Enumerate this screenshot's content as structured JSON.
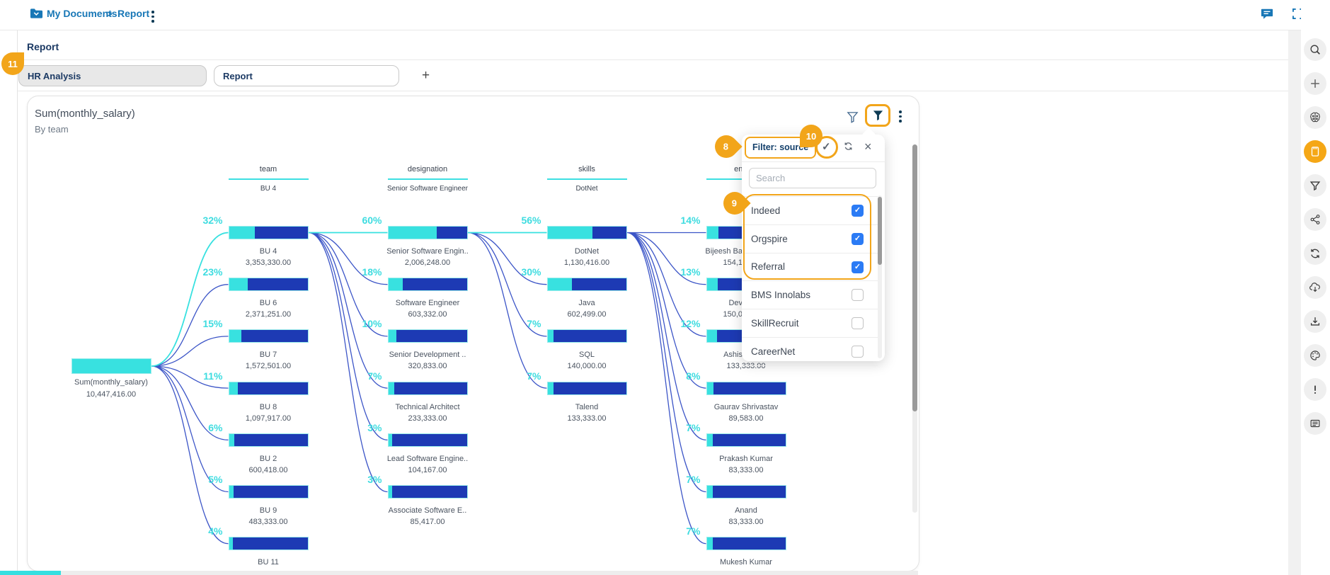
{
  "breadcrumb": {
    "folder_icon": "folder-icon",
    "items": [
      "My Documents",
      "Report"
    ],
    "separator": ">"
  },
  "topbar": {
    "comment_icon": "comment-icon",
    "fullscreen_icon": "fullscreen-icon"
  },
  "page": {
    "title": "Report"
  },
  "tabs": [
    {
      "label": "HR Analysis",
      "active": true
    },
    {
      "label": "Report",
      "active": false
    }
  ],
  "add_tab_label": "+",
  "chart": {
    "title": "Sum(monthly_salary)",
    "subtitle": "By team"
  },
  "annotations": {
    "badge8": "8",
    "badge9": "9",
    "badge10": "10",
    "badge11": "11"
  },
  "filter_popup": {
    "title": "Filter: source",
    "apply_icon": "✓",
    "close_icon": "×",
    "search_placeholder": "Search",
    "options": [
      {
        "label": "Indeed",
        "checked": true
      },
      {
        "label": "Orgspire",
        "checked": true
      },
      {
        "label": "Referral",
        "checked": true
      },
      {
        "label": "BMS Innolabs",
        "checked": false
      },
      {
        "label": "SkillRecruit",
        "checked": false
      },
      {
        "label": "CareerNet",
        "checked": false
      }
    ]
  },
  "chart_data": {
    "type": "decomposition-tree",
    "root": {
      "label": "Sum(monthly_salary)",
      "value": "10,447,416.00"
    },
    "columns": [
      {
        "header": "team",
        "selected": "BU 4",
        "nodes": [
          {
            "label": "BU 4",
            "value": "3,353,330.00",
            "pct": 32,
            "selected": true
          },
          {
            "label": "BU 6",
            "value": "2,371,251.00",
            "pct": 23
          },
          {
            "label": "BU 7",
            "value": "1,572,501.00",
            "pct": 15
          },
          {
            "label": "BU 8",
            "value": "1,097,917.00",
            "pct": 11
          },
          {
            "label": "BU 2",
            "value": "600,418.00",
            "pct": 6
          },
          {
            "label": "BU 9",
            "value": "483,333.00",
            "pct": 5
          },
          {
            "label": "BU 11",
            "value": "",
            "pct": 4
          }
        ]
      },
      {
        "header": "designation",
        "selected": "Senior Software Engineer",
        "nodes": [
          {
            "label": "Senior Software Engin..",
            "value": "2,006,248.00",
            "pct": 60,
            "selected": true
          },
          {
            "label": "Software Engineer",
            "value": "603,332.00",
            "pct": 18
          },
          {
            "label": "Senior Development ..",
            "value": "320,833.00",
            "pct": 10
          },
          {
            "label": "Technical Architect",
            "value": "233,333.00",
            "pct": 7
          },
          {
            "label": "Lead Software Engine..",
            "value": "104,167.00",
            "pct": 3
          },
          {
            "label": "Associate Software E..",
            "value": "85,417.00",
            "pct": 3
          }
        ]
      },
      {
        "header": "skills",
        "selected": "DotNet",
        "nodes": [
          {
            "label": "DotNet",
            "value": "1,130,416.00",
            "pct": 56,
            "selected": true
          },
          {
            "label": "Java",
            "value": "602,499.00",
            "pct": 30
          },
          {
            "label": "SQL",
            "value": "140,000.00",
            "pct": 7
          },
          {
            "label": "Talend",
            "value": "133,333.00",
            "pct": 7
          }
        ]
      },
      {
        "header": "ename",
        "selected": "",
        "nodes": [
          {
            "label": "Bijeesh Ba",
            "value": "154,1",
            "pct": 14,
            "cut_label": true,
            "cut_value": true
          },
          {
            "label": "Dev",
            "value": "150,0",
            "pct": 13,
            "cut_label": true,
            "cut_value": true
          },
          {
            "label": "Ashis",
            "value": "133,333.00",
            "pct": 12,
            "cut_label": true
          },
          {
            "label": "Gaurav Shrivastav",
            "value": "89,583.00",
            "pct": 8
          },
          {
            "label": "Prakash Kumar",
            "value": "83,333.00",
            "pct": 7
          },
          {
            "label": "Anand",
            "value": "83,333.00",
            "pct": 7
          },
          {
            "label": "Mukesh Kumar",
            "value": "",
            "pct": 7
          }
        ]
      }
    ]
  },
  "sidebar": {
    "icons": [
      {
        "name": "search-icon"
      },
      {
        "name": "add-icon"
      },
      {
        "name": "ai-brain-icon"
      },
      {
        "name": "report-card-icon",
        "active": true
      },
      {
        "name": "filter-icon"
      },
      {
        "name": "share-icon"
      },
      {
        "name": "sync-icon"
      },
      {
        "name": "cloud-download-icon"
      },
      {
        "name": "download-icon"
      },
      {
        "name": "palette-icon"
      },
      {
        "name": "alert-icon"
      },
      {
        "name": "notes-icon"
      }
    ]
  },
  "colors": {
    "brand_blue": "#1877B6",
    "navy": "#14406B",
    "bar_blue": "#1D3AB4",
    "bar_cyan": "#38E1E0",
    "pct_cyan": "#3EDCE0",
    "link_blue": "#2B46C2",
    "accent_orange": "#F2A51A",
    "checkbox_blue": "#2B7BF5"
  }
}
